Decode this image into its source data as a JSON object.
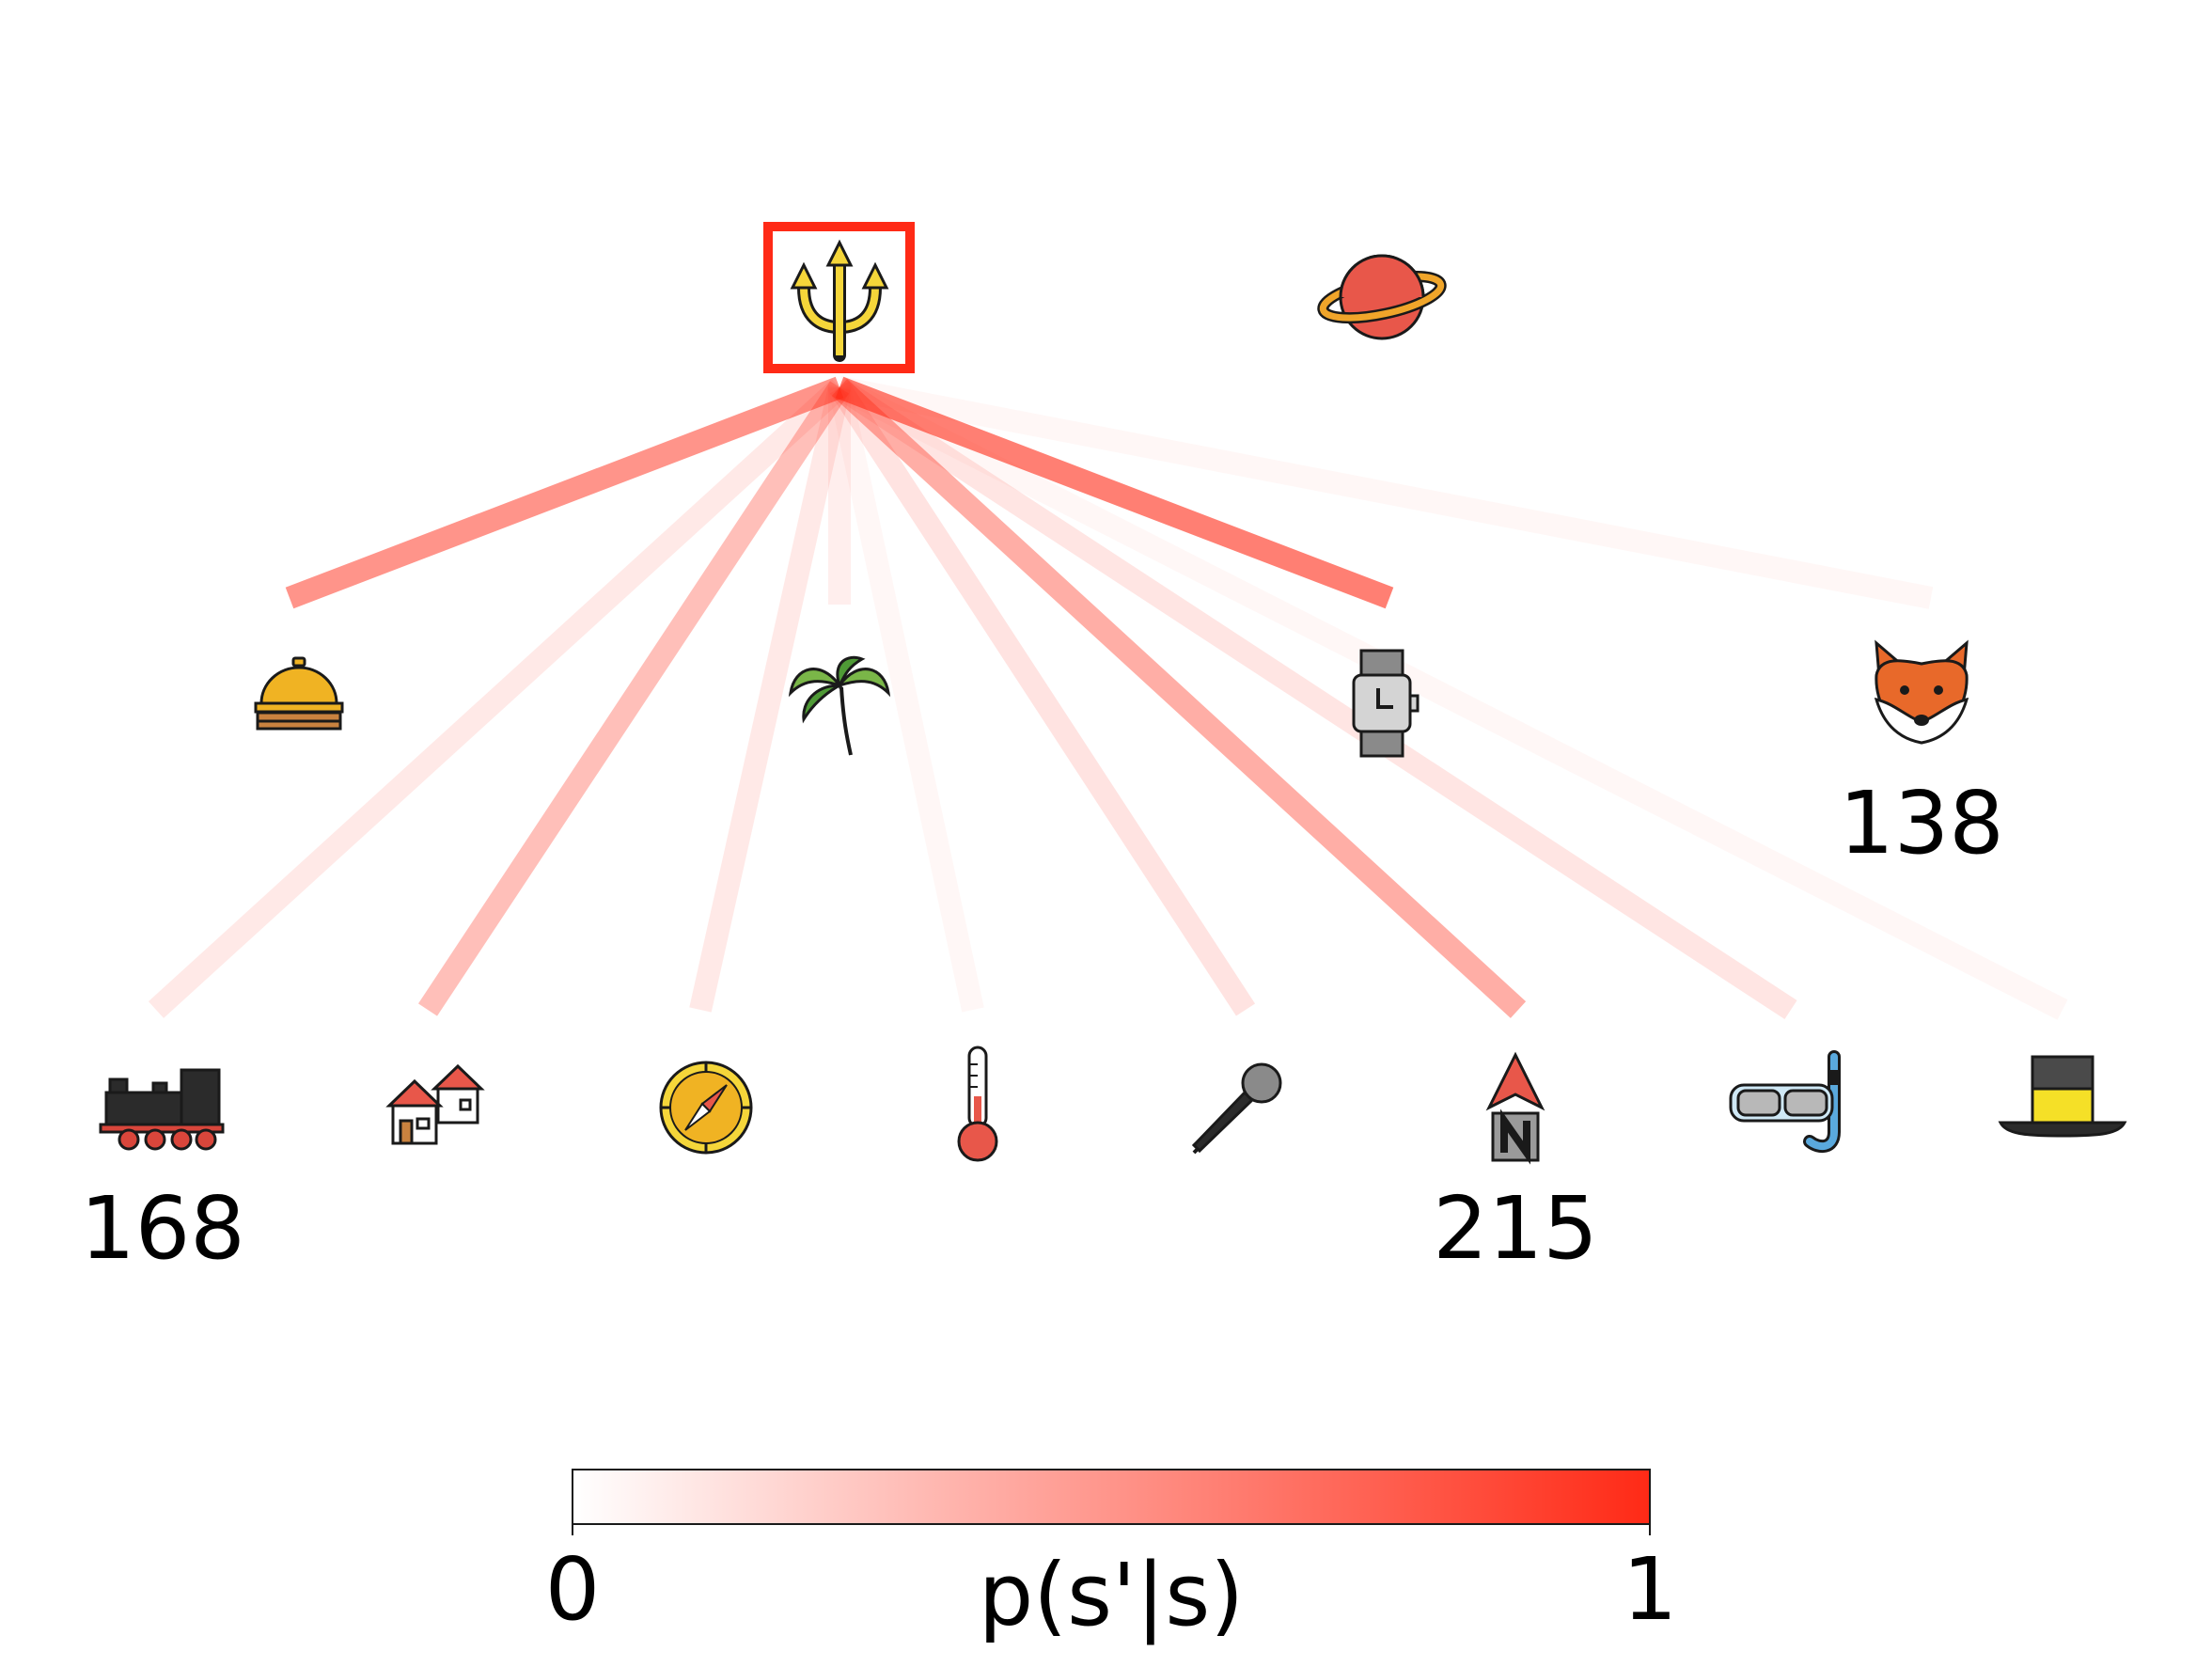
{
  "diagram": {
    "current_state_icon": "trident-icon",
    "highlight_color": "#ff2a16",
    "edge_color": "#ff2a16",
    "nodes": [
      {
        "id": "trident",
        "icon": "trident-icon",
        "label": ""
      },
      {
        "id": "planet",
        "icon": "ringed-planet-icon",
        "label": ""
      },
      {
        "id": "bell",
        "icon": "service-bell-icon",
        "label": ""
      },
      {
        "id": "palm",
        "icon": "palm-tree-icon",
        "label": ""
      },
      {
        "id": "watch",
        "icon": "wristwatch-icon",
        "label": ""
      },
      {
        "id": "fox",
        "icon": "fox-face-icon",
        "label": "138"
      },
      {
        "id": "train",
        "icon": "locomotive-icon",
        "label": "168"
      },
      {
        "id": "houses",
        "icon": "houses-icon",
        "label": ""
      },
      {
        "id": "compass",
        "icon": "compass-icon",
        "label": ""
      },
      {
        "id": "thermometer",
        "icon": "thermometer-icon",
        "label": ""
      },
      {
        "id": "microphone",
        "icon": "microphone-icon",
        "label": ""
      },
      {
        "id": "north",
        "icon": "north-arrow-icon",
        "label": "215"
      },
      {
        "id": "snorkel",
        "icon": "snorkel-mask-icon",
        "label": ""
      },
      {
        "id": "tophat",
        "icon": "top-hat-icon",
        "label": ""
      }
    ],
    "transitions": [
      {
        "to": "bell",
        "p": 0.5
      },
      {
        "to": "palm",
        "p": 0.08
      },
      {
        "to": "watch",
        "p": 0.6
      },
      {
        "to": "fox",
        "p": 0.04
      },
      {
        "to": "train",
        "p": 0.1
      },
      {
        "to": "houses",
        "p": 0.3
      },
      {
        "to": "compass",
        "p": 0.1
      },
      {
        "to": "thermometer",
        "p": 0.03
      },
      {
        "to": "microphone",
        "p": 0.13
      },
      {
        "to": "north",
        "p": 0.38
      },
      {
        "to": "snorkel",
        "p": 0.12
      },
      {
        "to": "tophat",
        "p": 0.02
      }
    ]
  },
  "colorbar": {
    "label": "p(s'|s)",
    "min_label": "0",
    "max_label": "1",
    "color_low": "#ffffff",
    "color_high": "#ff2a16"
  }
}
